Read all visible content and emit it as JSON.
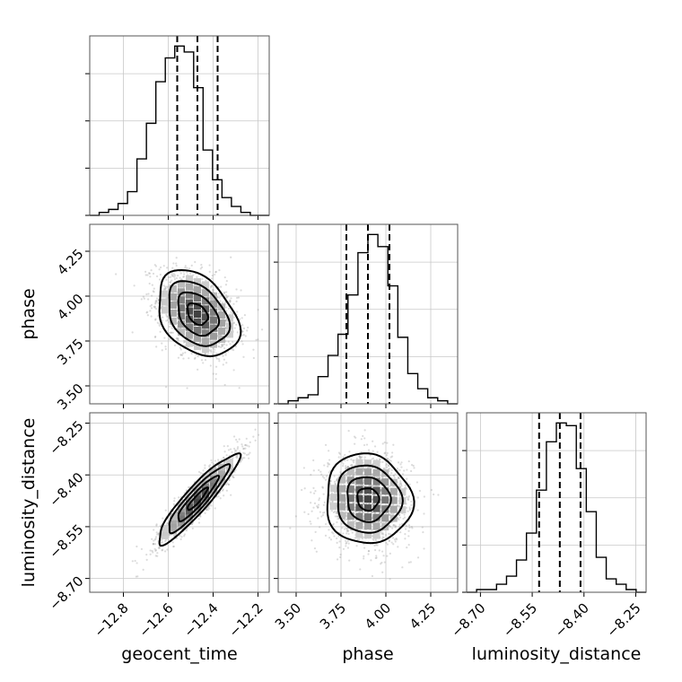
{
  "chart_data": {
    "type": "corner",
    "parameters": [
      {
        "name": "geocent_time",
        "label": "geocent_time",
        "range": [
          -12.95,
          -12.15
        ],
        "ticks": [
          -12.8,
          -12.6,
          -12.4,
          -12.2
        ],
        "tick_labels": [
          "−12.8",
          "−12.6",
          "−12.4",
          "−12.2"
        ],
        "median": -12.47,
        "quantiles": [
          -12.56,
          -12.47,
          -12.38
        ],
        "hist_counts": [
          0,
          1,
          2,
          4,
          8,
          19,
          31,
          45,
          53,
          57,
          55,
          43,
          22,
          12,
          6,
          3,
          1,
          0,
          0
        ]
      },
      {
        "name": "phase",
        "label": "phase",
        "range": [
          3.4,
          4.4
        ],
        "ticks": [
          3.5,
          3.75,
          4.0,
          4.25
        ],
        "tick_labels": [
          "3.50",
          "3.75",
          "4.00",
          "4.25"
        ],
        "median": 3.9,
        "quantiles": [
          3.78,
          3.9,
          4.02
        ],
        "hist_counts": [
          0,
          1,
          2,
          3,
          9,
          16,
          23,
          36,
          50,
          56,
          52,
          39,
          22,
          10,
          5,
          2,
          1,
          0
        ]
      },
      {
        "name": "luminosity_distance",
        "label": "luminosity_distance",
        "range": [
          -8.74,
          -8.22
        ],
        "ticks": [
          -8.7,
          -8.55,
          -8.4,
          -8.25
        ],
        "tick_labels": [
          "−8.70",
          "−8.55",
          "−8.40",
          "−8.25"
        ],
        "median": -8.47,
        "quantiles": [
          -8.53,
          -8.47,
          -8.41
        ],
        "hist_counts": [
          0,
          1,
          1,
          3,
          6,
          12,
          22,
          38,
          56,
          63,
          62,
          46,
          30,
          13,
          5,
          3,
          1,
          0
        ]
      }
    ],
    "correlations": {
      "geocent_time_phase": -0.35,
      "geocent_time_luminosity_distance": 0.92,
      "phase_luminosity_distance": -0.05
    },
    "sigma": {
      "geocent_time": 0.09,
      "phase": 0.12,
      "luminosity_distance": 0.065
    },
    "contour_levels_sigma": [
      0.5,
      1.0,
      1.5,
      2.0
    ],
    "scatter_samples": 1500,
    "grid": true
  }
}
